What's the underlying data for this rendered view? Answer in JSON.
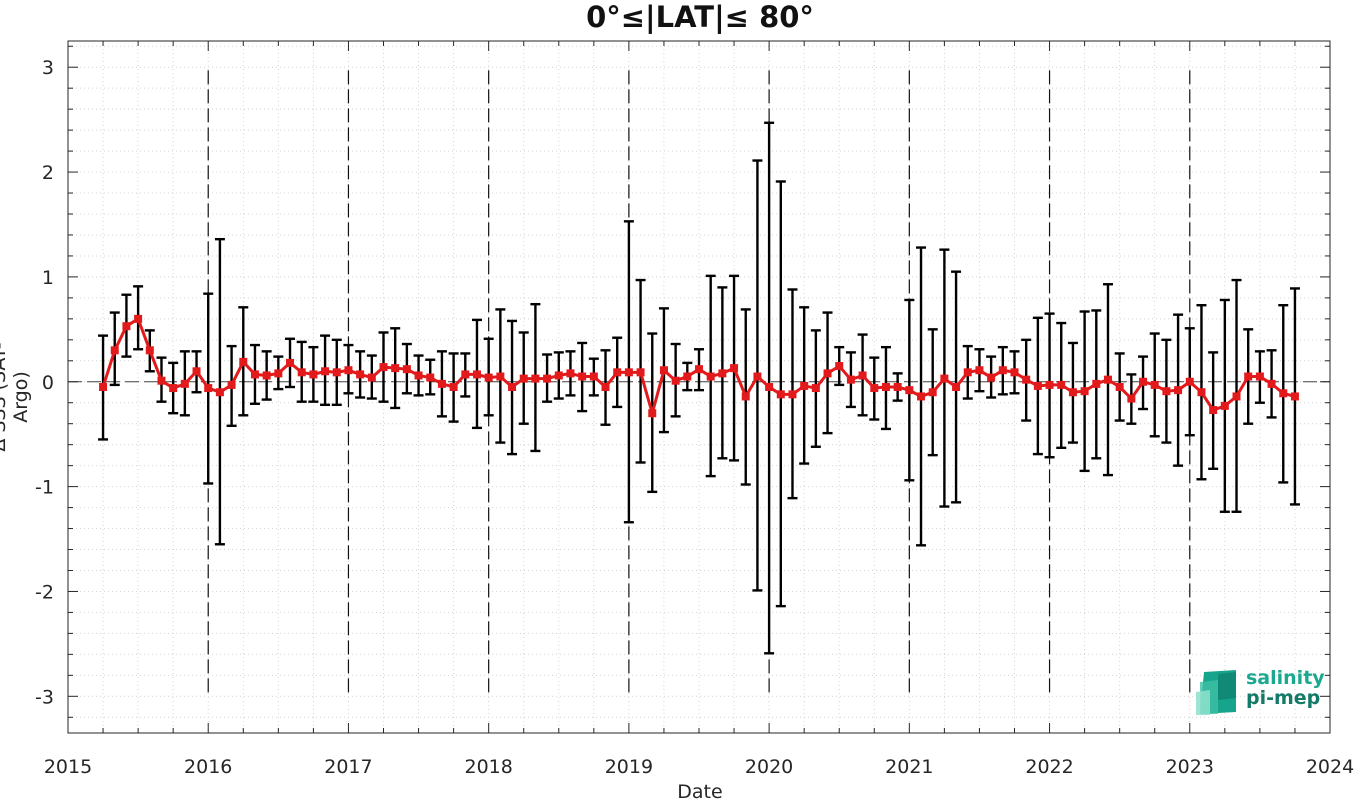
{
  "chart_data": {
    "type": "line",
    "title": "0°≤|LAT|≤ 80°",
    "xlabel": "Date",
    "ylabel": "Δ SSS (SAT-Argo)",
    "xlim": [
      2015,
      2024
    ],
    "ylim": [
      -3.35,
      3.25
    ],
    "xticks": [
      "2015",
      "2016",
      "2017",
      "2018",
      "2019",
      "2020",
      "2021",
      "2022",
      "2023",
      "2024"
    ],
    "yticks": [
      "3",
      "2",
      "1",
      "0",
      "-1",
      "-2",
      "-3"
    ],
    "grid": "minor dotted",
    "zero_line": true,
    "year_dividers": [
      2016,
      2017,
      2018,
      2019,
      2020,
      2021,
      2022,
      2023
    ],
    "series_color": "#e31a1c",
    "errorbar_color": "#000000",
    "series": [
      {
        "points": [
          {
            "x": "2015-04",
            "mean": -0.05,
            "lo": -0.55,
            "hi": 0.44
          },
          {
            "x": "2015-05",
            "mean": 0.3,
            "lo": -0.03,
            "hi": 0.66
          },
          {
            "x": "2015-06",
            "mean": 0.53,
            "lo": 0.24,
            "hi": 0.83
          },
          {
            "x": "2015-07",
            "mean": 0.6,
            "lo": 0.31,
            "hi": 0.91
          },
          {
            "x": "2015-08",
            "mean": 0.3,
            "lo": 0.1,
            "hi": 0.49
          },
          {
            "x": "2015-09",
            "mean": 0.01,
            "lo": -0.19,
            "hi": 0.23
          },
          {
            "x": "2015-10",
            "mean": -0.06,
            "lo": -0.3,
            "hi": 0.18
          },
          {
            "x": "2015-11",
            "mean": -0.02,
            "lo": -0.32,
            "hi": 0.29
          },
          {
            "x": "2015-12",
            "mean": 0.1,
            "lo": -0.1,
            "hi": 0.29
          },
          {
            "x": "2016-01",
            "mean": -0.06,
            "lo": -0.97,
            "hi": 0.84
          },
          {
            "x": "2016-02",
            "mean": -0.1,
            "lo": -1.55,
            "hi": 1.36
          },
          {
            "x": "2016-03",
            "mean": -0.03,
            "lo": -0.42,
            "hi": 0.34
          },
          {
            "x": "2016-04",
            "mean": 0.19,
            "lo": -0.32,
            "hi": 0.71
          },
          {
            "x": "2016-05",
            "mean": 0.07,
            "lo": -0.21,
            "hi": 0.35
          },
          {
            "x": "2016-06",
            "mean": 0.06,
            "lo": -0.17,
            "hi": 0.29
          },
          {
            "x": "2016-07",
            "mean": 0.08,
            "lo": -0.07,
            "hi": 0.24
          },
          {
            "x": "2016-08",
            "mean": 0.18,
            "lo": -0.05,
            "hi": 0.41
          },
          {
            "x": "2016-09",
            "mean": 0.09,
            "lo": -0.19,
            "hi": 0.38
          },
          {
            "x": "2016-10",
            "mean": 0.07,
            "lo": -0.19,
            "hi": 0.33
          },
          {
            "x": "2016-11",
            "mean": 0.1,
            "lo": -0.22,
            "hi": 0.44
          },
          {
            "x": "2016-12",
            "mean": 0.09,
            "lo": -0.22,
            "hi": 0.4
          },
          {
            "x": "2017-01",
            "mean": 0.11,
            "lo": -0.11,
            "hi": 0.35
          },
          {
            "x": "2017-02",
            "mean": 0.07,
            "lo": -0.15,
            "hi": 0.29
          },
          {
            "x": "2017-03",
            "mean": 0.04,
            "lo": -0.16,
            "hi": 0.25
          },
          {
            "x": "2017-04",
            "mean": 0.14,
            "lo": -0.19,
            "hi": 0.47
          },
          {
            "x": "2017-05",
            "mean": 0.13,
            "lo": -0.25,
            "hi": 0.51
          },
          {
            "x": "2017-06",
            "mean": 0.12,
            "lo": -0.11,
            "hi": 0.36
          },
          {
            "x": "2017-07",
            "mean": 0.06,
            "lo": -0.13,
            "hi": 0.25
          },
          {
            "x": "2017-08",
            "mean": 0.04,
            "lo": -0.12,
            "hi": 0.21
          },
          {
            "x": "2017-09",
            "mean": -0.02,
            "lo": -0.33,
            "hi": 0.29
          },
          {
            "x": "2017-10",
            "mean": -0.05,
            "lo": -0.38,
            "hi": 0.27
          },
          {
            "x": "2017-11",
            "mean": 0.07,
            "lo": -0.14,
            "hi": 0.27
          },
          {
            "x": "2017-12",
            "mean": 0.07,
            "lo": -0.44,
            "hi": 0.59
          },
          {
            "x": "2018-01",
            "mean": 0.04,
            "lo": -0.32,
            "hi": 0.41
          },
          {
            "x": "2018-02",
            "mean": 0.05,
            "lo": -0.58,
            "hi": 0.69
          },
          {
            "x": "2018-03",
            "mean": -0.05,
            "lo": -0.69,
            "hi": 0.58
          },
          {
            "x": "2018-04",
            "mean": 0.03,
            "lo": -0.4,
            "hi": 0.47
          },
          {
            "x": "2018-05",
            "mean": 0.03,
            "lo": -0.66,
            "hi": 0.74
          },
          {
            "x": "2018-06",
            "mean": 0.03,
            "lo": -0.19,
            "hi": 0.26
          },
          {
            "x": "2018-07",
            "mean": 0.06,
            "lo": -0.16,
            "hi": 0.28
          },
          {
            "x": "2018-08",
            "mean": 0.08,
            "lo": -0.13,
            "hi": 0.29
          },
          {
            "x": "2018-09",
            "mean": 0.05,
            "lo": -0.28,
            "hi": 0.37
          },
          {
            "x": "2018-10",
            "mean": 0.05,
            "lo": -0.13,
            "hi": 0.22
          },
          {
            "x": "2018-11",
            "mean": -0.05,
            "lo": -0.41,
            "hi": 0.3
          },
          {
            "x": "2018-12",
            "mean": 0.09,
            "lo": -0.24,
            "hi": 0.42
          },
          {
            "x": "2019-01",
            "mean": 0.09,
            "lo": -1.34,
            "hi": 1.53
          },
          {
            "x": "2019-02",
            "mean": 0.09,
            "lo": -0.77,
            "hi": 0.97
          },
          {
            "x": "2019-03",
            "mean": -0.3,
            "lo": -1.05,
            "hi": 0.46
          },
          {
            "x": "2019-04",
            "mean": 0.11,
            "lo": -0.48,
            "hi": 0.7
          },
          {
            "x": "2019-05",
            "mean": 0.01,
            "lo": -0.33,
            "hi": 0.36
          },
          {
            "x": "2019-06",
            "mean": 0.05,
            "lo": -0.08,
            "hi": 0.18
          },
          {
            "x": "2019-07",
            "mean": 0.12,
            "lo": -0.08,
            "hi": 0.31
          },
          {
            "x": "2019-08",
            "mean": 0.05,
            "lo": -0.9,
            "hi": 1.01
          },
          {
            "x": "2019-09",
            "mean": 0.08,
            "lo": -0.73,
            "hi": 0.9
          },
          {
            "x": "2019-10",
            "mean": 0.13,
            "lo": -0.75,
            "hi": 1.01
          },
          {
            "x": "2019-11",
            "mean": -0.14,
            "lo": -0.98,
            "hi": 0.69
          },
          {
            "x": "2019-12",
            "mean": 0.05,
            "lo": -1.99,
            "hi": 2.11
          },
          {
            "x": "2020-01",
            "mean": -0.05,
            "lo": -2.59,
            "hi": 2.47
          },
          {
            "x": "2020-02",
            "mean": -0.12,
            "lo": -2.14,
            "hi": 1.91
          },
          {
            "x": "2020-03",
            "mean": -0.12,
            "lo": -1.11,
            "hi": 0.88
          },
          {
            "x": "2020-04",
            "mean": -0.04,
            "lo": -0.78,
            "hi": 0.71
          },
          {
            "x": "2020-05",
            "mean": -0.06,
            "lo": -0.62,
            "hi": 0.49
          },
          {
            "x": "2020-06",
            "mean": 0.08,
            "lo": -0.49,
            "hi": 0.66
          },
          {
            "x": "2020-07",
            "mean": 0.15,
            "lo": -0.03,
            "hi": 0.33
          },
          {
            "x": "2020-08",
            "mean": 0.02,
            "lo": -0.24,
            "hi": 0.28
          },
          {
            "x": "2020-09",
            "mean": 0.06,
            "lo": -0.32,
            "hi": 0.45
          },
          {
            "x": "2020-10",
            "mean": -0.06,
            "lo": -0.36,
            "hi": 0.23
          },
          {
            "x": "2020-11",
            "mean": -0.05,
            "lo": -0.45,
            "hi": 0.33
          },
          {
            "x": "2020-12",
            "mean": -0.05,
            "lo": -0.18,
            "hi": 0.08
          },
          {
            "x": "2021-01",
            "mean": -0.08,
            "lo": -0.94,
            "hi": 0.78
          },
          {
            "x": "2021-02",
            "mean": -0.14,
            "lo": -1.56,
            "hi": 1.28
          },
          {
            "x": "2021-03",
            "mean": -0.1,
            "lo": -0.7,
            "hi": 0.5
          },
          {
            "x": "2021-04",
            "mean": 0.03,
            "lo": -1.19,
            "hi": 1.26
          },
          {
            "x": "2021-05",
            "mean": -0.05,
            "lo": -1.15,
            "hi": 1.05
          },
          {
            "x": "2021-06",
            "mean": 0.09,
            "lo": -0.16,
            "hi": 0.34
          },
          {
            "x": "2021-07",
            "mean": 0.11,
            "lo": -0.09,
            "hi": 0.31
          },
          {
            "x": "2021-08",
            "mean": 0.04,
            "lo": -0.15,
            "hi": 0.24
          },
          {
            "x": "2021-09",
            "mean": 0.11,
            "lo": -0.12,
            "hi": 0.33
          },
          {
            "x": "2021-10",
            "mean": 0.09,
            "lo": -0.11,
            "hi": 0.29
          },
          {
            "x": "2021-11",
            "mean": 0.02,
            "lo": -0.37,
            "hi": 0.4
          },
          {
            "x": "2021-12",
            "mean": -0.04,
            "lo": -0.69,
            "hi": 0.61
          },
          {
            "x": "2022-01",
            "mean": -0.03,
            "lo": -0.72,
            "hi": 0.65
          },
          {
            "x": "2022-02",
            "mean": -0.03,
            "lo": -0.63,
            "hi": 0.56
          },
          {
            "x": "2022-03",
            "mean": -0.1,
            "lo": -0.58,
            "hi": 0.37
          },
          {
            "x": "2022-04",
            "mean": -0.09,
            "lo": -0.85,
            "hi": 0.67
          },
          {
            "x": "2022-05",
            "mean": -0.02,
            "lo": -0.73,
            "hi": 0.68
          },
          {
            "x": "2022-06",
            "mean": 0.02,
            "lo": -0.89,
            "hi": 0.93
          },
          {
            "x": "2022-07",
            "mean": -0.05,
            "lo": -0.37,
            "hi": 0.27
          },
          {
            "x": "2022-08",
            "mean": -0.16,
            "lo": -0.4,
            "hi": 0.07
          },
          {
            "x": "2022-09",
            "mean": 0.0,
            "lo": -0.26,
            "hi": 0.24
          },
          {
            "x": "2022-10",
            "mean": -0.03,
            "lo": -0.52,
            "hi": 0.46
          },
          {
            "x": "2022-11",
            "mean": -0.09,
            "lo": -0.58,
            "hi": 0.4
          },
          {
            "x": "2022-12",
            "mean": -0.08,
            "lo": -0.8,
            "hi": 0.64
          },
          {
            "x": "2023-01",
            "mean": 0.0,
            "lo": -0.51,
            "hi": 0.51
          },
          {
            "x": "2023-02",
            "mean": -0.1,
            "lo": -0.93,
            "hi": 0.73
          },
          {
            "x": "2023-03",
            "mean": -0.27,
            "lo": -0.83,
            "hi": 0.28
          },
          {
            "x": "2023-04",
            "mean": -0.23,
            "lo": -1.24,
            "hi": 0.78
          },
          {
            "x": "2023-05",
            "mean": -0.14,
            "lo": -1.24,
            "hi": 0.97
          },
          {
            "x": "2023-06",
            "mean": 0.05,
            "lo": -0.4,
            "hi": 0.5
          },
          {
            "x": "2023-07",
            "mean": 0.05,
            "lo": -0.2,
            "hi": 0.29
          },
          {
            "x": "2023-08",
            "mean": -0.02,
            "lo": -0.34,
            "hi": 0.3
          },
          {
            "x": "2023-09",
            "mean": -0.11,
            "lo": -0.96,
            "hi": 0.73
          },
          {
            "x": "2023-10",
            "mean": -0.14,
            "lo": -1.17,
            "hi": 0.89
          }
        ]
      }
    ]
  },
  "logo": {
    "line1": "salinity",
    "line2": "pi-mep"
  }
}
